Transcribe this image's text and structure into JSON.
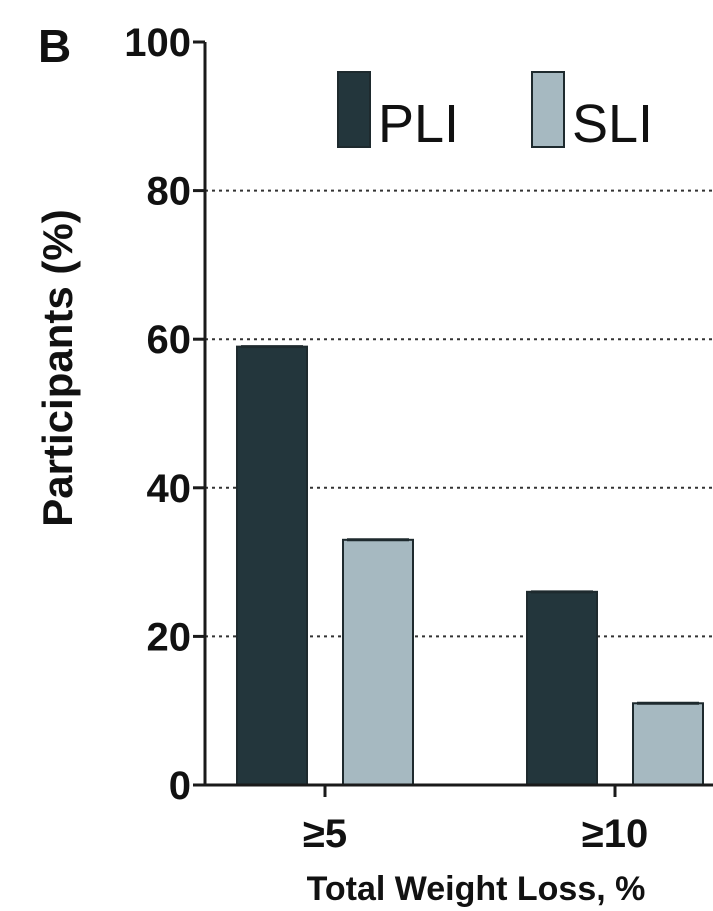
{
  "panel_letter": "B",
  "colors": {
    "PLI": "#23363c",
    "SLI": "#a6b9c1",
    "axis": "#1a1a1a",
    "grid": "#333333"
  },
  "chart_data": {
    "type": "bar",
    "categories": [
      "≥5",
      "≥10"
    ],
    "series": [
      {
        "name": "PLI",
        "values": [
          59,
          26
        ]
      },
      {
        "name": "SLI",
        "values": [
          33,
          11
        ]
      }
    ],
    "title": "",
    "xlabel": "Total Weight Loss, %",
    "ylabel": "Participants (%)",
    "ylim": [
      0,
      100
    ],
    "yticks": [
      0,
      20,
      40,
      60,
      80,
      100
    ],
    "grid": "horizontal dotted at 20, 40, 60, 80",
    "legend": "top"
  }
}
